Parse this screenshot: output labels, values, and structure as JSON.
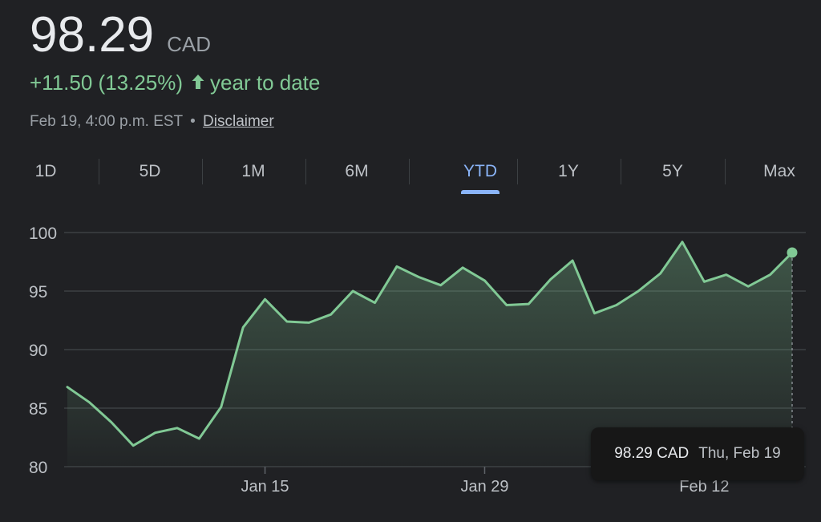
{
  "quote": {
    "price": "98.29",
    "currency": "CAD",
    "change": "+11.50 (13.25%)",
    "change_period": "year to date",
    "timestamp": "Feb 19, 4:00 p.m. EST",
    "separator": "•",
    "disclaimer": "Disclaimer"
  },
  "tabs": [
    {
      "label": "1D"
    },
    {
      "label": "5D"
    },
    {
      "label": "1M"
    },
    {
      "label": "6M"
    },
    {
      "label": "YTD",
      "active": true
    },
    {
      "label": "1Y"
    },
    {
      "label": "5Y"
    },
    {
      "label": "Max"
    }
  ],
  "tooltip": {
    "value": "98.29 CAD",
    "date": "Thu, Feb 19"
  },
  "colors": {
    "line": "#81c995",
    "accent": "#8ab4f8",
    "background": "#202124"
  },
  "chart_data": {
    "type": "area",
    "ylim": [
      80,
      100
    ],
    "yticks": [
      100,
      95,
      90,
      85,
      80
    ],
    "xticks": [
      {
        "label": "Jan 15",
        "index": 9
      },
      {
        "label": "Jan 29",
        "index": 19
      },
      {
        "label": "Feb 12",
        "index": 29
      }
    ],
    "series": [
      {
        "values": [
          86.8,
          85.5,
          83.8,
          81.8,
          82.9,
          83.3,
          82.4,
          85.1,
          91.9,
          94.3,
          92.4,
          92.3,
          93.0,
          95.0,
          94.0,
          97.1,
          96.2,
          95.5,
          97.0,
          95.9,
          93.8,
          93.9,
          96.0,
          97.6,
          93.1,
          93.8,
          95.0,
          96.5,
          99.2,
          95.8,
          96.4,
          95.4,
          96.4,
          98.29
        ]
      }
    ]
  }
}
